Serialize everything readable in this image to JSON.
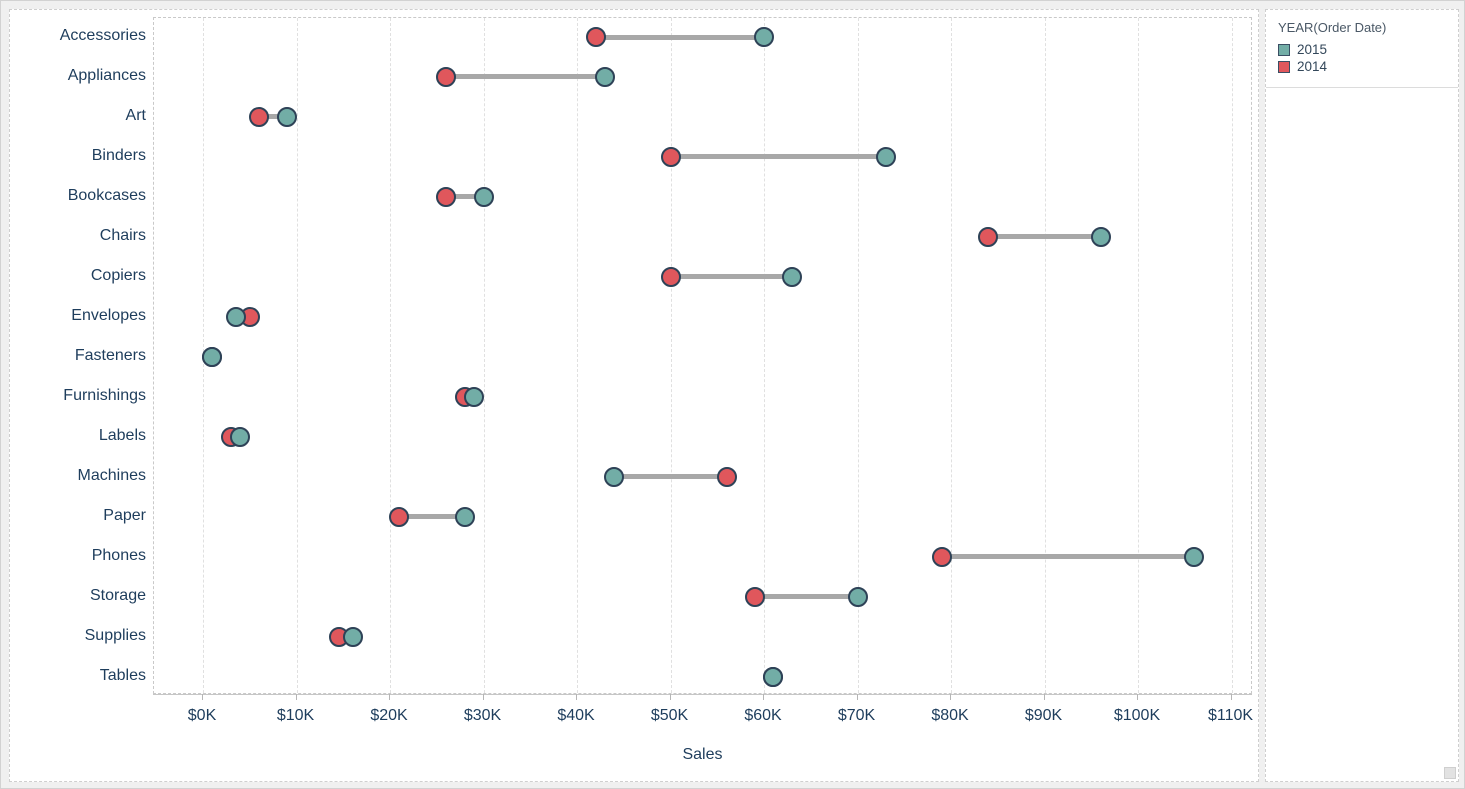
{
  "chart_data": {
    "type": "dumbbell",
    "title": "",
    "xlabel": "Sales",
    "units": "USD thousands",
    "xlim": [
      0,
      115
    ],
    "x_tick_values": [
      0,
      10,
      20,
      30,
      40,
      50,
      60,
      70,
      80,
      90,
      100,
      110
    ],
    "x_ticks": [
      "$0K",
      "$10K",
      "$20K",
      "$30K",
      "$40K",
      "$50K",
      "$60K",
      "$70K",
      "$80K",
      "$90K",
      "$100K",
      "$110K"
    ],
    "grid": "vertical-dashed",
    "legend_position": "top-right",
    "categories": [
      "Accessories",
      "Appliances",
      "Art",
      "Binders",
      "Bookcases",
      "Chairs",
      "Copiers",
      "Envelopes",
      "Fasteners",
      "Furnishings",
      "Labels",
      "Machines",
      "Paper",
      "Phones",
      "Storage",
      "Supplies",
      "Tables"
    ],
    "series": [
      {
        "name": "2014",
        "color": "#e0575c",
        "values": [
          42,
          26,
          6,
          50,
          26,
          84,
          50,
          5,
          1,
          28,
          3,
          56,
          21,
          79,
          59,
          14.5,
          61
        ]
      },
      {
        "name": "2015",
        "color": "#72ada6",
        "values": [
          60,
          43,
          9,
          73,
          30,
          96,
          63,
          3.5,
          1,
          29,
          4,
          44,
          28,
          106,
          70,
          16,
          61
        ]
      }
    ]
  },
  "legend": {
    "title": "YEAR(Order Date)",
    "items": [
      {
        "label": "2015",
        "color": "#72ada6"
      },
      {
        "label": "2014",
        "color": "#e0575c"
      }
    ]
  },
  "colors": {
    "dot_outline": "#2e4257",
    "connector": "#a8a8a8",
    "axis_text": "#1e3d5c",
    "gridline": "#e0e0e0",
    "background": "#f0f0f0",
    "panel": "#ffffff"
  }
}
